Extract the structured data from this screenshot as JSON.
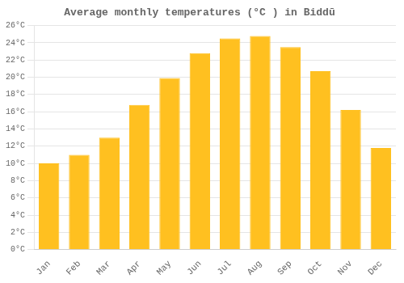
{
  "chart_data": {
    "type": "bar",
    "title": "Average monthly temperatures (°C ) in Biddū",
    "categories": [
      "Jan",
      "Feb",
      "Mar",
      "Apr",
      "May",
      "Jun",
      "Jul",
      "Aug",
      "Sep",
      "Oct",
      "Nov",
      "Dec"
    ],
    "values": [
      10.0,
      11.0,
      13.0,
      16.8,
      19.9,
      22.8,
      24.5,
      24.8,
      23.5,
      20.7,
      16.2,
      11.8
    ],
    "color": "#FFC020",
    "ylim": [
      0,
      26
    ],
    "yticks": [
      {
        "value": 0,
        "label": "0°C"
      },
      {
        "value": 2,
        "label": "2°C"
      },
      {
        "value": 4,
        "label": "4°C"
      },
      {
        "value": 6,
        "label": "6°C"
      },
      {
        "value": 8,
        "label": "8°C"
      },
      {
        "value": 10,
        "label": "10°C"
      },
      {
        "value": 12,
        "label": "12°C"
      },
      {
        "value": 14,
        "label": "14°C"
      },
      {
        "value": 16,
        "label": "16°C"
      },
      {
        "value": 18,
        "label": "18°C"
      },
      {
        "value": 20,
        "label": "20°C"
      },
      {
        "value": 22,
        "label": "22°C"
      },
      {
        "value": 24,
        "label": "24°C"
      },
      {
        "value": 26,
        "label": "26°C"
      }
    ],
    "grid": true
  }
}
